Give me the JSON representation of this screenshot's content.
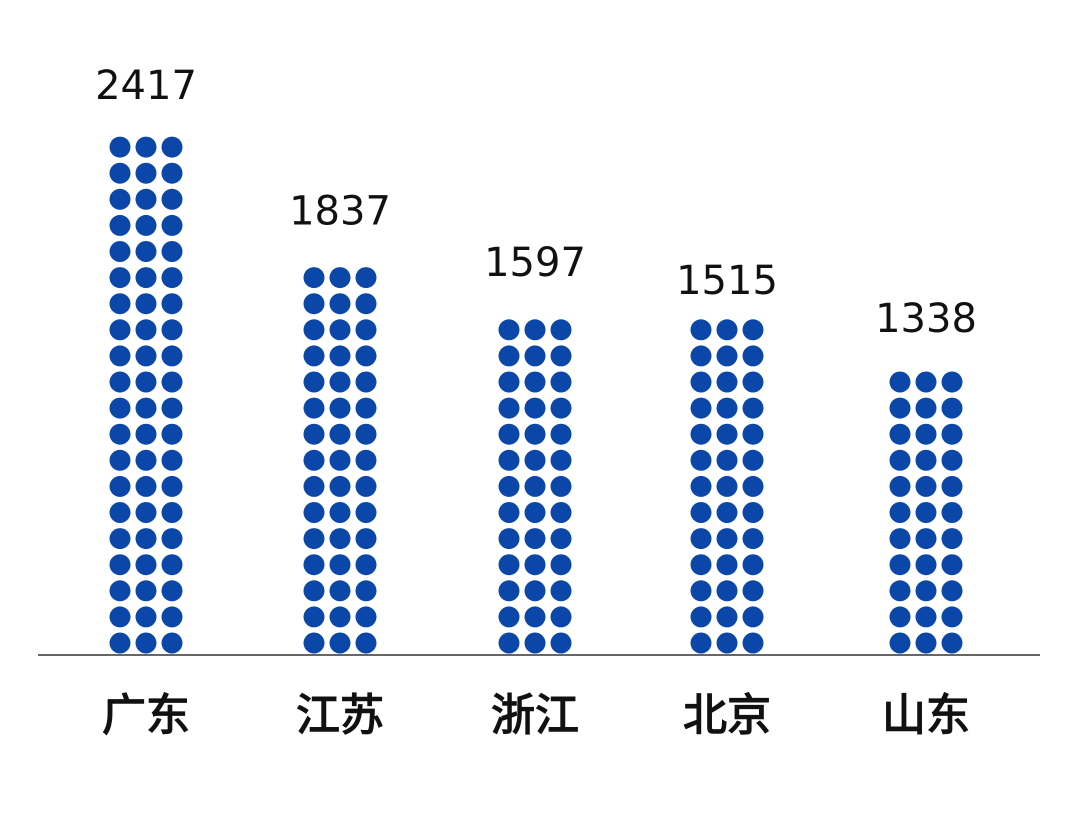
{
  "chart_data": {
    "type": "bar",
    "categories": [
      "广东",
      "江苏",
      "浙江",
      "北京",
      "山东"
    ],
    "values": [
      2417,
      1837,
      1597,
      1515,
      1338
    ],
    "color": "#0a47a8"
  }
}
